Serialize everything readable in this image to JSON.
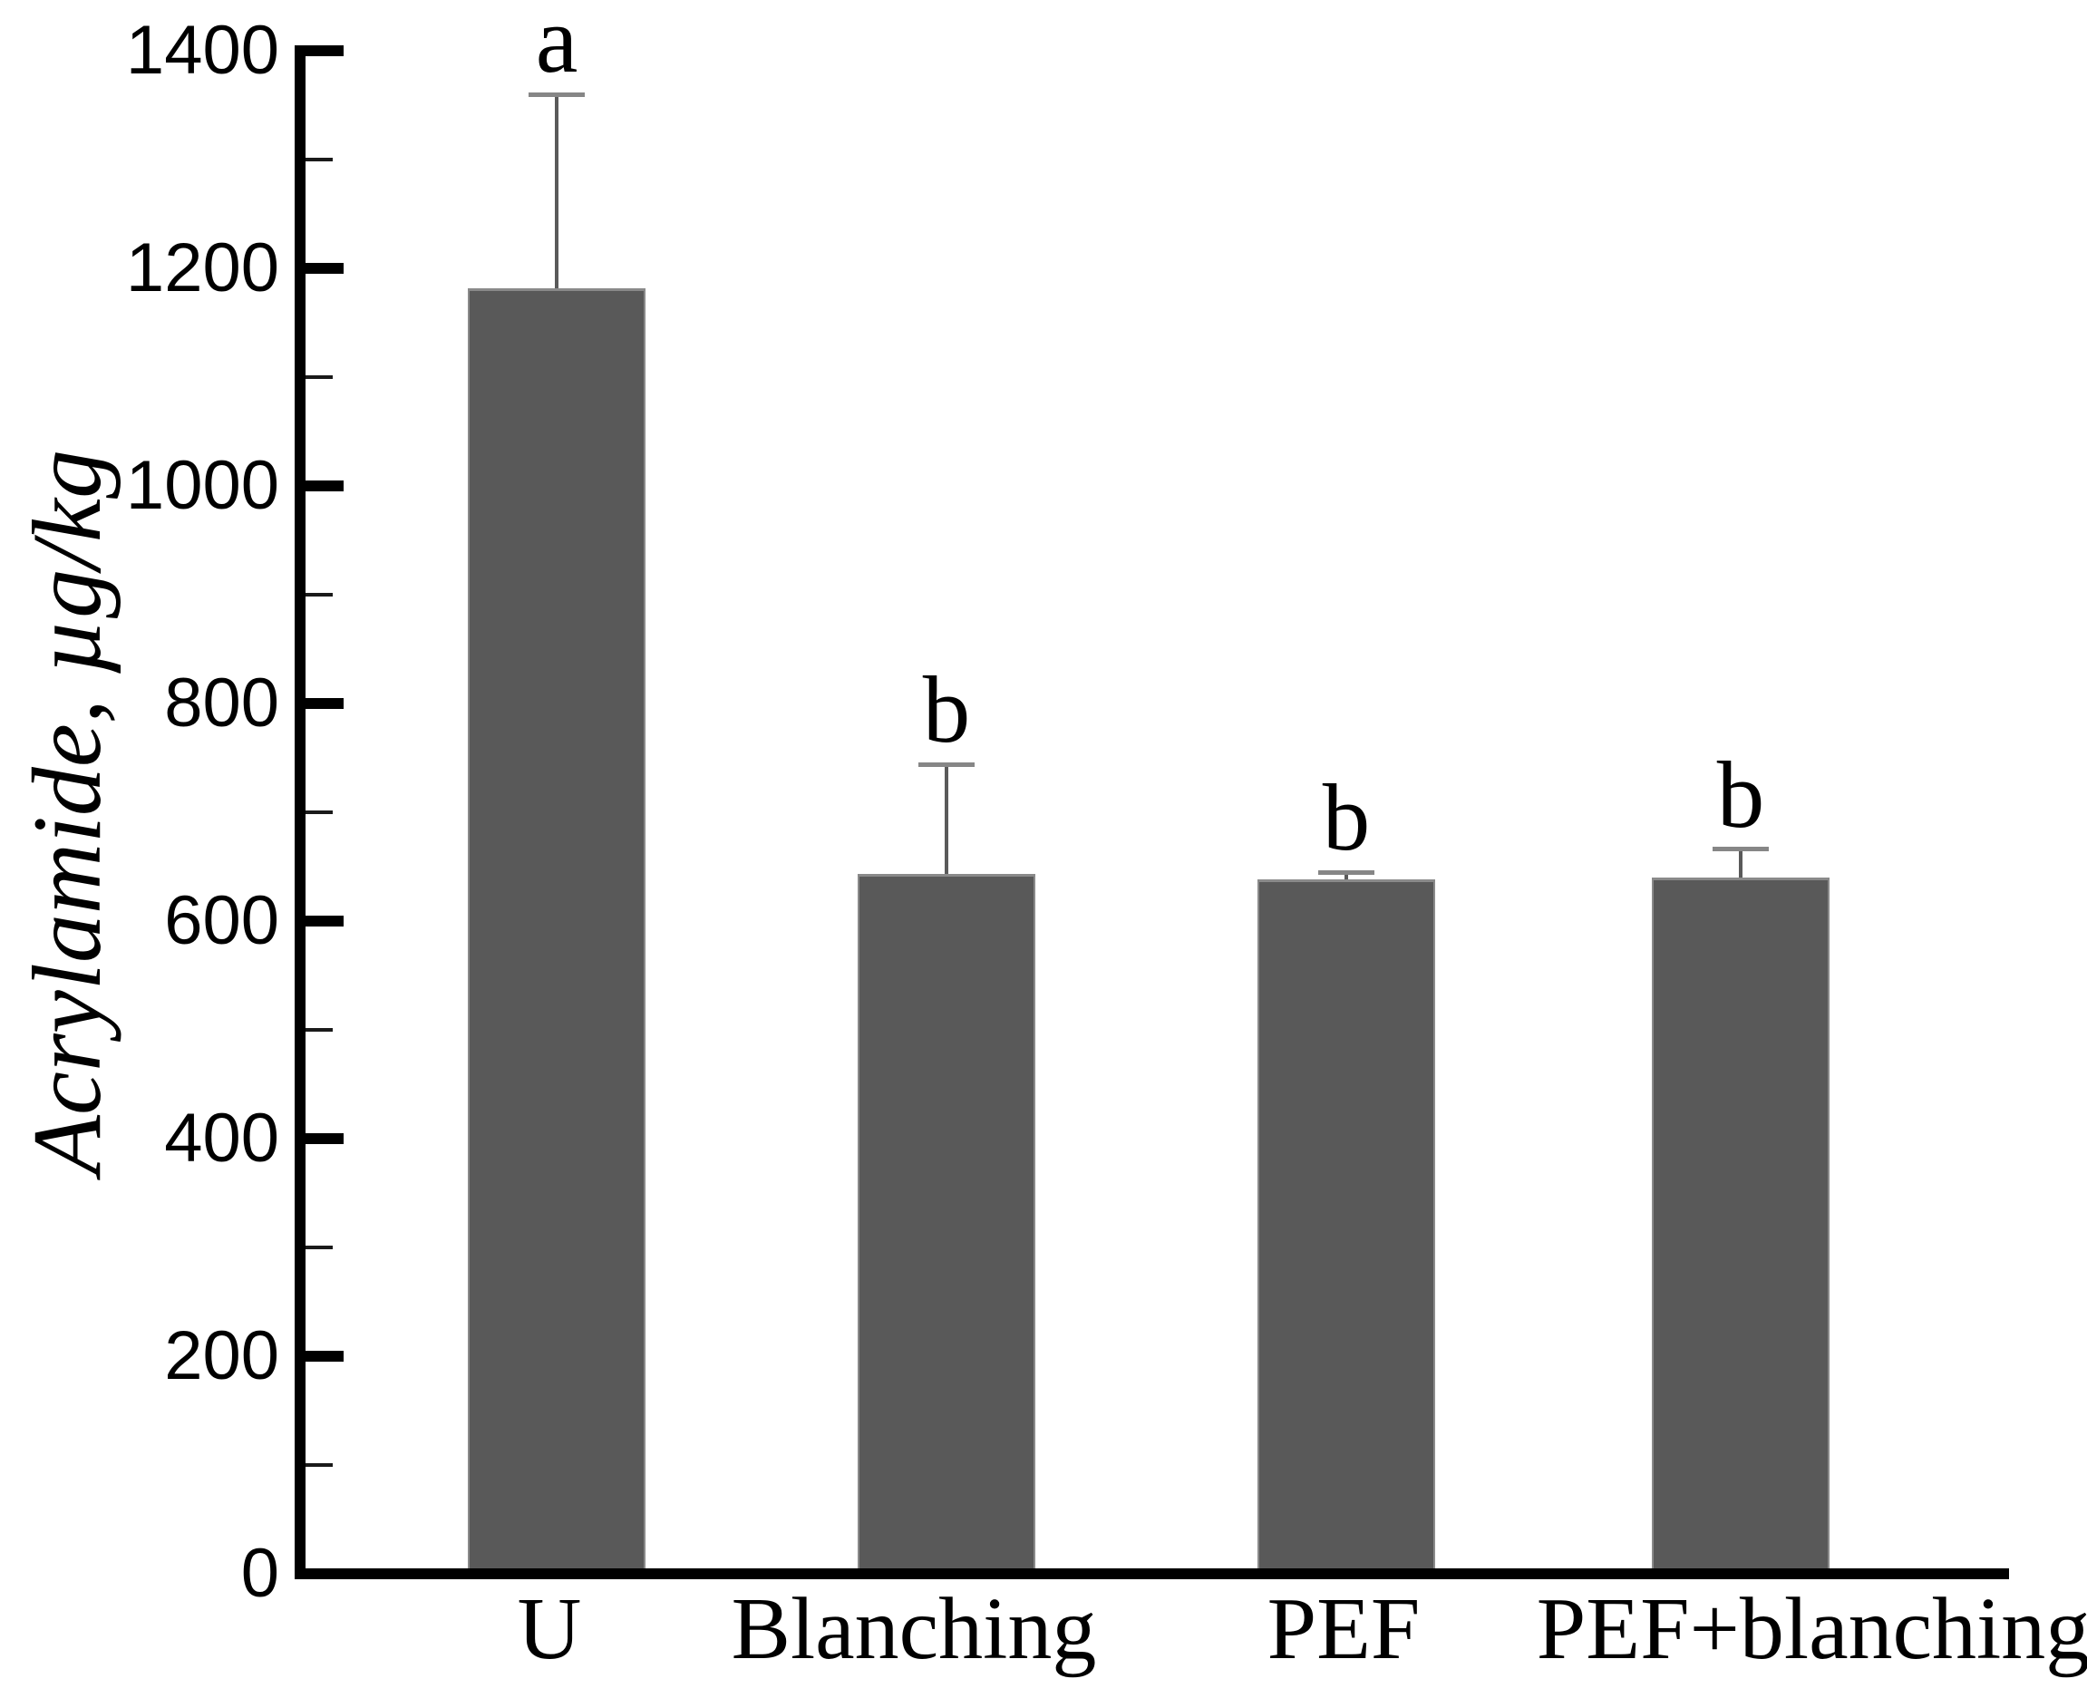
{
  "chart_data": {
    "type": "bar",
    "title": "",
    "xlabel": "",
    "ylabel": "Acrylamide, µg/kg",
    "categories": [
      "U",
      "Blanching",
      "PEF",
      "PEF+blanching"
    ],
    "series": [
      {
        "name": "Acrylamide",
        "values": [
          1182,
          643,
          638,
          640
        ],
        "errors_plus": [
          178,
          101,
          7,
          26
        ]
      }
    ],
    "significance_letters": [
      "a",
      "b",
      "b",
      "b"
    ],
    "ylim": [
      0,
      1400
    ],
    "ytick_interval": 200,
    "ytick_labels": [
      "0",
      "200",
      "400",
      "600",
      "800",
      "1000",
      "1200",
      "1400"
    ],
    "minor_tick_interval": 100,
    "tick_direction": "in",
    "grid": false,
    "legend": "none",
    "colors": {
      "bar_fill": "#595959",
      "bar_edge": "#8a8a8a",
      "error_line": "#5a5a5a",
      "error_cap": "#868686",
      "axis": "#000000",
      "text": "#000000",
      "background": "#ffffff"
    }
  }
}
